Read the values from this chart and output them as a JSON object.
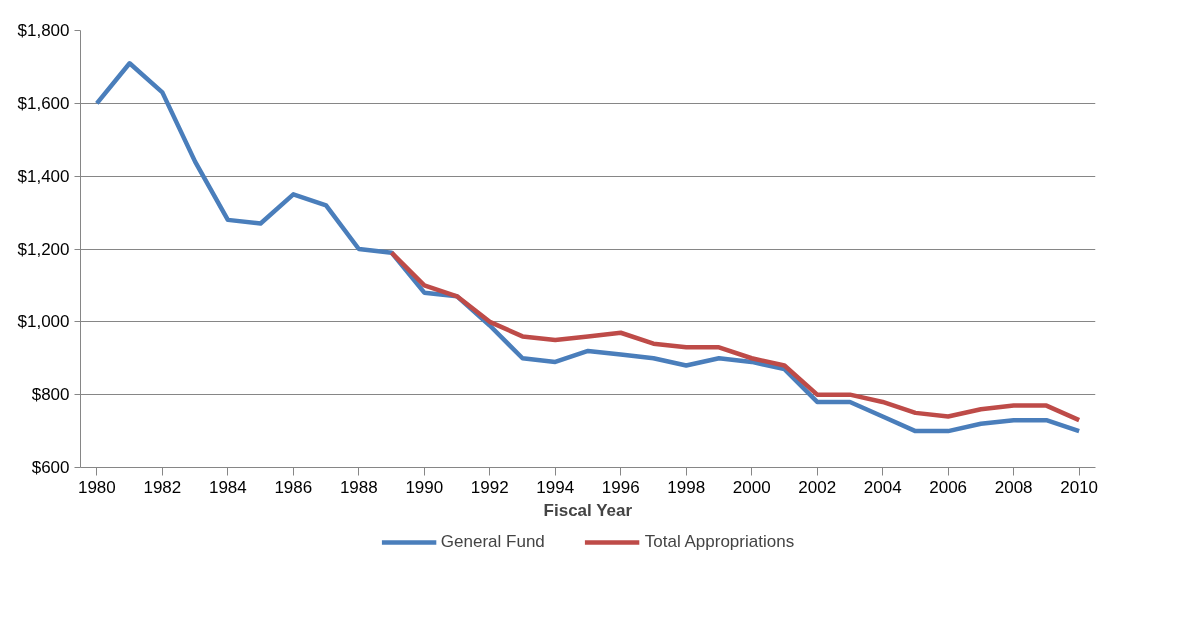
{
  "chart_data": {
    "type": "line",
    "xlabel": "Fiscal Year",
    "x": [
      1980,
      1981,
      1982,
      1983,
      1984,
      1985,
      1986,
      1987,
      1988,
      1989,
      1990,
      1991,
      1992,
      1993,
      1994,
      1995,
      1996,
      1997,
      1998,
      1999,
      2000,
      2001,
      2002,
      2003,
      2004,
      2005,
      2006,
      2007,
      2008,
      2009,
      2010
    ],
    "series": [
      {
        "name": "General Fund",
        "color": "#4a7ebb",
        "values": [
          1600,
          1710,
          1630,
          1440,
          1280,
          1270,
          1350,
          1320,
          1200,
          1190,
          1080,
          1070,
          990,
          900,
          890,
          920,
          910,
          900,
          880,
          900,
          890,
          870,
          780,
          780,
          740,
          700,
          700,
          720,
          730,
          730,
          700
        ]
      },
      {
        "name": "Total Appropriations",
        "color": "#be4b48",
        "values": [
          null,
          null,
          null,
          null,
          null,
          null,
          null,
          null,
          null,
          1190,
          1100,
          1070,
          1000,
          960,
          950,
          960,
          970,
          940,
          930,
          930,
          900,
          880,
          800,
          800,
          780,
          750,
          740,
          760,
          770,
          770,
          730
        ]
      }
    ],
    "xlim": [
      1979.5,
      2010.5
    ],
    "xticks": [
      1980,
      1982,
      1984,
      1986,
      1988,
      1990,
      1992,
      1994,
      1996,
      1998,
      2000,
      2002,
      2004,
      2006,
      2008,
      2010
    ],
    "ylim": [
      600,
      1800
    ],
    "yticks": [
      {
        "value": 600,
        "label": "$600"
      },
      {
        "value": 800,
        "label": "$800"
      },
      {
        "value": 1000,
        "label": "$1,000"
      },
      {
        "value": 1200,
        "label": "$1,200"
      },
      {
        "value": 1400,
        "label": "$1,400"
      },
      {
        "value": 1600,
        "label": "$1,600"
      },
      {
        "value": 1800,
        "label": "$1,800"
      }
    ],
    "grid": "y",
    "legend": "bottom",
    "marker": "none",
    "line_style": "solid"
  }
}
